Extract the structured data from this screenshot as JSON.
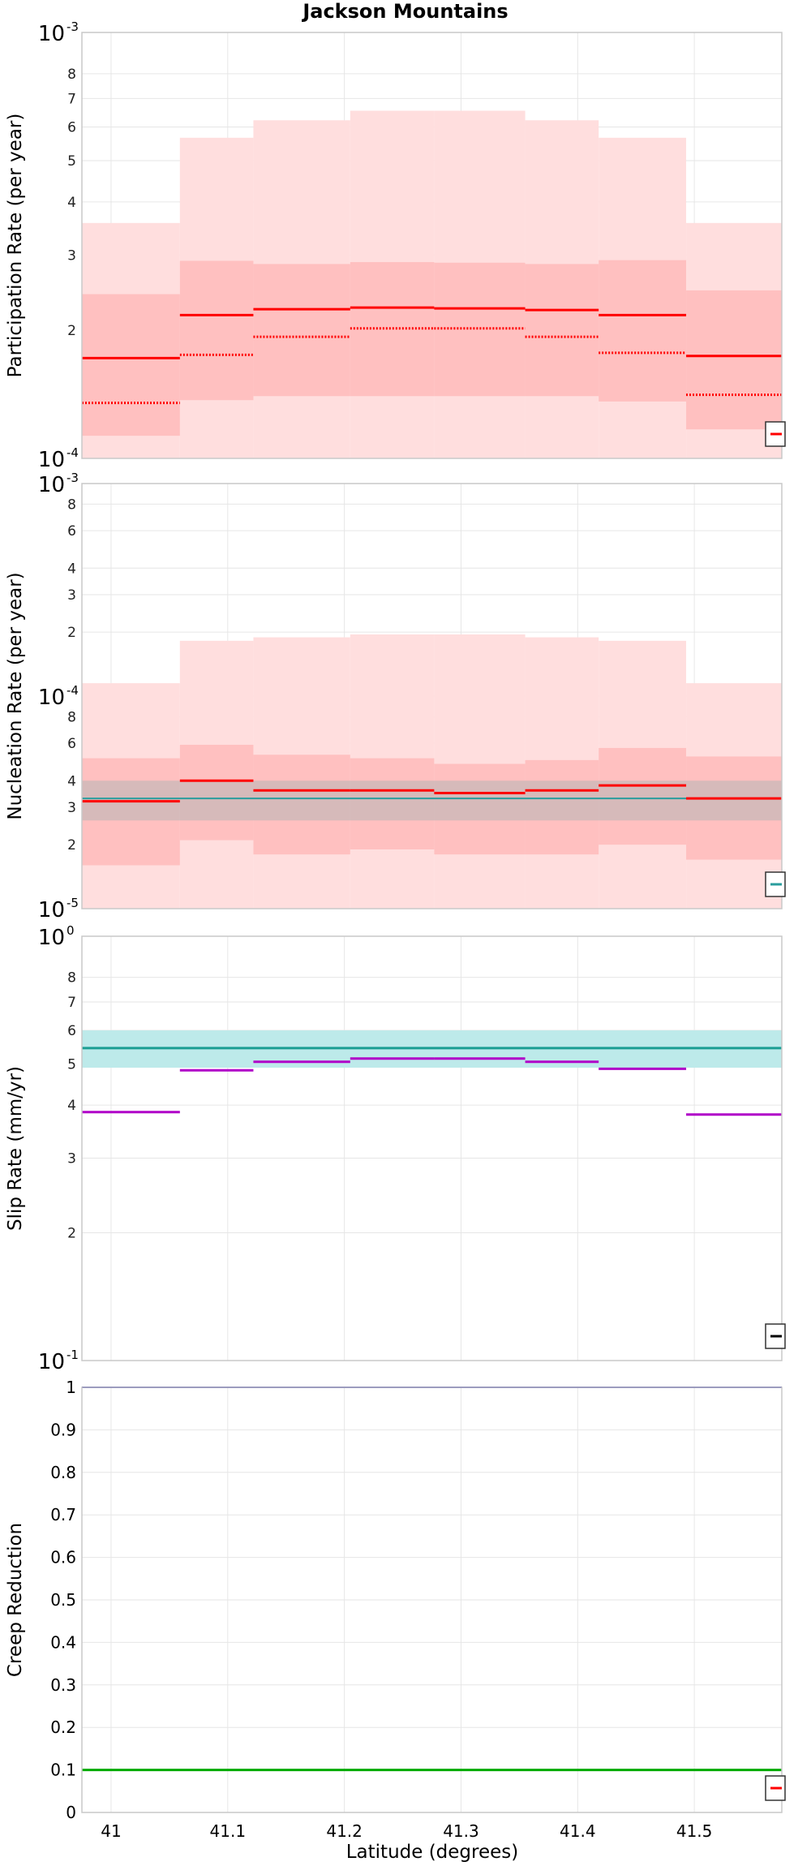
{
  "title": "Jackson Mountains",
  "xlabel": "Latitude (degrees)",
  "colors": {
    "participation": "#ff0000",
    "band_light": "#ffdede",
    "band_dark": "#ffc0c0",
    "nucleation_ref": "#2a9d9d",
    "nucleation_ref_band": "#b5b5b5",
    "slip_ref": "#1a9e93",
    "slip_ref_band": "#bdeaea",
    "slip_modeled": "#b000c8",
    "creep_top": "#1a1aa0",
    "creep_bottom": "#00aa00",
    "grid": "#e6e6e6",
    "frame": "#c8c8c8"
  },
  "chart_data": [
    {
      "type": "line",
      "name": "participation",
      "ylabel": "Participation Rate (per year)",
      "yscale": "log",
      "xlim": [
        40.975,
        41.575
      ],
      "ylim": [
        0.0001,
        0.001
      ],
      "x_ticks": [
        "41",
        "41.1",
        "41.2",
        "41.3",
        "41.4",
        "41.5"
      ],
      "y_major_ticks": [
        {
          "base": "10",
          "exp": "-3",
          "value": 0.001
        },
        {
          "base": "10",
          "exp": "-4",
          "value": 0.0001
        }
      ],
      "y_minor_ticks": [
        {
          "label": "8",
          "value": 0.0008
        },
        {
          "label": "7",
          "value": 0.0007
        },
        {
          "label": "6",
          "value": 0.0006
        },
        {
          "label": "5",
          "value": 0.0005
        },
        {
          "label": "4",
          "value": 0.0004
        },
        {
          "label": "3",
          "value": 0.0003
        },
        {
          "label": "2",
          "value": 0.0002
        }
      ],
      "segments": [
        {
          "x0": 40.975,
          "x1": 41.059,
          "mean": 0.000172,
          "median": 0.000135,
          "p16": 0.000113,
          "p84": 0.000243,
          "p2": 0.0001,
          "p98": 0.000357
        },
        {
          "x0": 41.059,
          "x1": 41.122,
          "mean": 0.000217,
          "median": 0.000175,
          "p16": 0.000137,
          "p84": 0.000291,
          "p2": 0.0001,
          "p98": 0.000566
        },
        {
          "x0": 41.122,
          "x1": 41.205,
          "mean": 0.000224,
          "median": 0.000193,
          "p16": 0.00014,
          "p84": 0.000286,
          "p2": 0.0001,
          "p98": 0.000622
        },
        {
          "x0": 41.205,
          "x1": 41.277,
          "mean": 0.000226,
          "median": 0.000202,
          "p16": 0.00014,
          "p84": 0.000289,
          "p2": 0.0001,
          "p98": 0.000655
        },
        {
          "x0": 41.277,
          "x1": 41.355,
          "mean": 0.000225,
          "median": 0.000202,
          "p16": 0.00014,
          "p84": 0.000288,
          "p2": 0.0001,
          "p98": 0.000655
        },
        {
          "x0": 41.355,
          "x1": 41.418,
          "mean": 0.000223,
          "median": 0.000193,
          "p16": 0.00014,
          "p84": 0.000286,
          "p2": 0.0001,
          "p98": 0.000622
        },
        {
          "x0": 41.418,
          "x1": 41.493,
          "mean": 0.000217,
          "median": 0.000177,
          "p16": 0.000136,
          "p84": 0.000292,
          "p2": 0.0001,
          "p98": 0.000566
        },
        {
          "x0": 41.493,
          "x1": 41.575,
          "mean": 0.000174,
          "median": 0.000141,
          "p16": 0.000117,
          "p84": 0.000248,
          "p2": 0.0001,
          "p98": 0.000357
        }
      ]
    },
    {
      "type": "line",
      "name": "nucleation",
      "ylabel": "Nucleation Rate (per year)",
      "yscale": "log",
      "xlim": [
        40.975,
        41.575
      ],
      "ylim": [
        1e-05,
        0.001
      ],
      "x_ticks": [
        "41",
        "41.1",
        "41.2",
        "41.3",
        "41.4",
        "41.5"
      ],
      "y_major_ticks": [
        {
          "base": "10",
          "exp": "-3",
          "value": 0.001
        },
        {
          "base": "10",
          "exp": "-4",
          "value": 0.0001
        },
        {
          "base": "10",
          "exp": "-5",
          "value": 1e-05
        }
      ],
      "y_minor_ticks": [
        {
          "label": "8",
          "value": 0.0008
        },
        {
          "label": "6",
          "value": 0.0006
        },
        {
          "label": "4",
          "value": 0.0004
        },
        {
          "label": "3",
          "value": 0.0003
        },
        {
          "label": "2",
          "value": 0.0002
        },
        {
          "label": "8",
          "value": 8e-05
        },
        {
          "label": "6",
          "value": 6e-05
        },
        {
          "label": "4",
          "value": 4e-05
        },
        {
          "label": "3",
          "value": 3e-05
        },
        {
          "label": "2",
          "value": 2e-05
        }
      ],
      "reference": {
        "value": 3.3e-05,
        "low": 2.6e-05,
        "high": 4e-05
      },
      "segments": [
        {
          "x0": 40.975,
          "x1": 41.059,
          "mean": 3.2e-05,
          "p16": 1.6e-05,
          "p84": 5.1e-05,
          "p2": 1e-05,
          "p98": 0.000115
        },
        {
          "x0": 41.059,
          "x1": 41.122,
          "mean": 4e-05,
          "p16": 2.1e-05,
          "p84": 5.9e-05,
          "p2": 1e-05,
          "p98": 0.000182
        },
        {
          "x0": 41.122,
          "x1": 41.205,
          "mean": 3.6e-05,
          "p16": 1.8e-05,
          "p84": 5.3e-05,
          "p2": 1e-05,
          "p98": 0.000189
        },
        {
          "x0": 41.205,
          "x1": 41.277,
          "mean": 3.6e-05,
          "p16": 1.9e-05,
          "p84": 5.1e-05,
          "p2": 1e-05,
          "p98": 0.000195
        },
        {
          "x0": 41.277,
          "x1": 41.355,
          "mean": 3.5e-05,
          "p16": 1.8e-05,
          "p84": 4.8e-05,
          "p2": 1e-05,
          "p98": 0.000195
        },
        {
          "x0": 41.355,
          "x1": 41.418,
          "mean": 3.6e-05,
          "p16": 1.8e-05,
          "p84": 5e-05,
          "p2": 1e-05,
          "p98": 0.000189
        },
        {
          "x0": 41.418,
          "x1": 41.493,
          "mean": 3.8e-05,
          "p16": 2e-05,
          "p84": 5.7e-05,
          "p2": 1e-05,
          "p98": 0.000182
        },
        {
          "x0": 41.493,
          "x1": 41.575,
          "mean": 3.3e-05,
          "p16": 1.7e-05,
          "p84": 5.2e-05,
          "p2": 1e-05,
          "p98": 0.000115
        }
      ]
    },
    {
      "type": "line",
      "name": "slip",
      "ylabel": "Slip Rate (mm/yr)",
      "yscale": "log",
      "xlim": [
        40.975,
        41.575
      ],
      "ylim": [
        0.1,
        1
      ],
      "x_ticks": [
        "41",
        "41.1",
        "41.2",
        "41.3",
        "41.4",
        "41.5"
      ],
      "y_major_ticks": [
        {
          "base": "10",
          "exp": "0",
          "value": 1
        },
        {
          "base": "10",
          "exp": "-1",
          "value": 0.1
        }
      ],
      "y_minor_ticks": [
        {
          "label": "8",
          "value": 0.8
        },
        {
          "label": "7",
          "value": 0.7
        },
        {
          "label": "6",
          "value": 0.6
        },
        {
          "label": "5",
          "value": 0.5
        },
        {
          "label": "4",
          "value": 0.4
        },
        {
          "label": "3",
          "value": 0.3
        },
        {
          "label": "2",
          "value": 0.2
        }
      ],
      "reference": {
        "value": 0.545,
        "low": 0.49,
        "high": 0.6
      },
      "segments": [
        {
          "x0": 40.975,
          "x1": 41.059,
          "value": 0.385
        },
        {
          "x0": 41.122,
          "x1": 41.205,
          "value": 0.506
        },
        {
          "x0": 41.205,
          "x1": 41.277,
          "value": 0.515
        },
        {
          "x0": 41.277,
          "x1": 41.355,
          "value": 0.515
        },
        {
          "x0": 41.355,
          "x1": 41.418,
          "value": 0.506
        },
        {
          "x0": 41.418,
          "x1": 41.493,
          "value": 0.487
        },
        {
          "x0": 41.493,
          "x1": 41.575,
          "value": 0.38
        },
        {
          "x0": 41.059,
          "x1": 41.122,
          "value": 0.483
        }
      ]
    },
    {
      "type": "line",
      "name": "creep",
      "ylabel": "Creep Reduction",
      "yscale": "linear",
      "xlim": [
        40.975,
        41.575
      ],
      "ylim": [
        0,
        1
      ],
      "x_ticks": [
        "41",
        "41.1",
        "41.2",
        "41.3",
        "41.4",
        "41.5"
      ],
      "y_ticks": [
        "0",
        "0.1",
        "0.2",
        "0.3",
        "0.4",
        "0.5",
        "0.6",
        "0.7",
        "0.8",
        "0.9",
        "1"
      ],
      "lines": [
        {
          "value": 1.0,
          "color_key": "creep_top"
        },
        {
          "value": 0.1,
          "color_key": "creep_bottom"
        }
      ]
    }
  ]
}
